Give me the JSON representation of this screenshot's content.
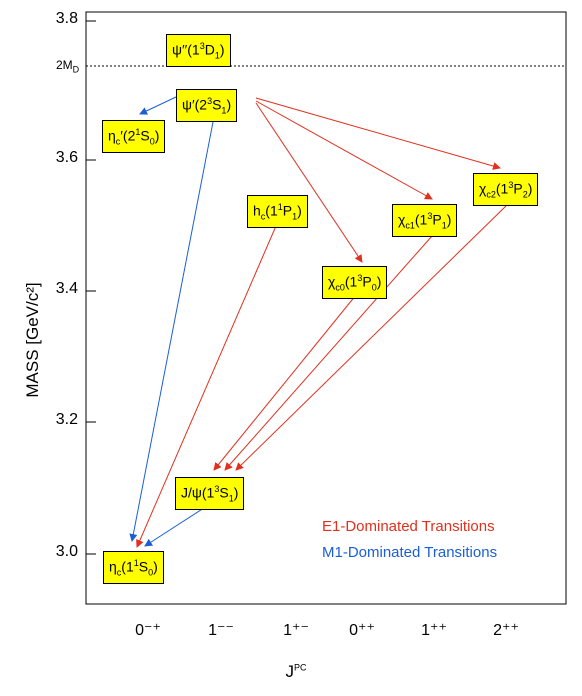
{
  "chart_data": {
    "type": "diagram",
    "ylabel": "MASS  [GeV/c²]",
    "xlabel_main": "J",
    "xlabel_sup": "PC",
    "y_ticks": [
      "3.8",
      "3.6",
      "3.4",
      "3.2",
      "3.0"
    ],
    "x_ticks": [
      "0⁻⁺",
      "1⁻⁻",
      "1⁺⁻",
      "0⁺⁺",
      "1⁺⁺",
      "2⁺⁺"
    ],
    "threshold_label": "2M",
    "threshold_sub": "D",
    "legend": [
      {
        "text": "E1-Dominated Transitions",
        "color": "#e0301e"
      },
      {
        "text": "M1-Dominated Transitions",
        "color": "#1a5fd6"
      }
    ],
    "states": [
      {
        "name": "psi3770",
        "html": "ψ′′(1<sup>3</sup>D<sub>1</sub>)"
      },
      {
        "name": "psi2s",
        "html": "ψ′(2<sup>3</sup>S<sub>1</sub>)"
      },
      {
        "name": "etac2s",
        "html": "η<sub>c</sub>′(2<sup>1</sup>S<sub>0</sub>)"
      },
      {
        "name": "hc",
        "html": "h<sub>c</sub>(1<sup>1</sup>P<sub>1</sub>)"
      },
      {
        "name": "chic0",
        "html": "χ<sub>c0</sub>(1<sup>3</sup>P<sub>0</sub>)"
      },
      {
        "name": "chic1",
        "html": "χ<sub>c1</sub>(1<sup>3</sup>P<sub>1</sub>)"
      },
      {
        "name": "chic2",
        "html": "χ<sub>c2</sub>(1<sup>3</sup>P<sub>2</sub>)"
      },
      {
        "name": "jpsi",
        "html": "J/ψ(1<sup>3</sup>S<sub>1</sub>)"
      },
      {
        "name": "etac",
        "html": "η<sub>c</sub>(1<sup>1</sup>S<sub>0</sub>)"
      }
    ],
    "transitions": [
      {
        "from": "psi2s",
        "to": "etac2s",
        "type": "M1"
      },
      {
        "from": "psi2s",
        "to": "etac",
        "type": "M1"
      },
      {
        "from": "psi2s",
        "to": "chic0",
        "type": "E1"
      },
      {
        "from": "psi2s",
        "to": "chic1",
        "type": "E1"
      },
      {
        "from": "psi2s",
        "to": "chic2",
        "type": "E1"
      },
      {
        "from": "hc",
        "to": "etac",
        "type": "E1"
      },
      {
        "from": "chic0",
        "to": "jpsi",
        "type": "E1"
      },
      {
        "from": "chic1",
        "to": "jpsi",
        "type": "E1"
      },
      {
        "from": "chic2",
        "to": "jpsi",
        "type": "E1"
      },
      {
        "from": "jpsi",
        "to": "etac",
        "type": "M1"
      }
    ]
  }
}
